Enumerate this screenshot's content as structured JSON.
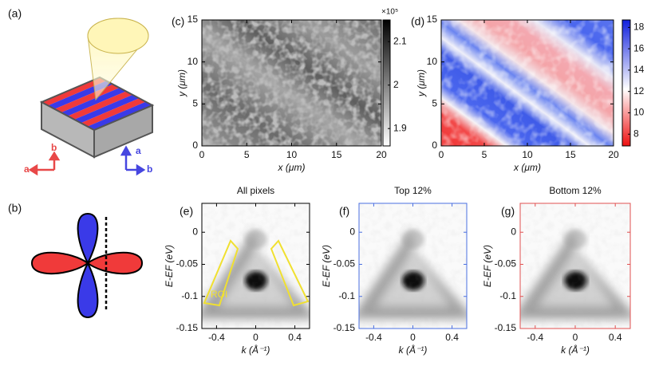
{
  "figure": {
    "panel_a": {
      "label": "(a)",
      "arrows": [
        "a",
        "b",
        "a",
        "b"
      ]
    },
    "panel_b": {
      "label": "(b)"
    },
    "maps": [
      {
        "label": "(c)",
        "xlabel": "x (μm)",
        "ylabel": "y (μm)",
        "xlim": [
          0,
          20
        ],
        "xticks": [
          0,
          5,
          10,
          15,
          20
        ],
        "ylim": [
          0,
          15
        ],
        "yticks": [
          0,
          5,
          10,
          15
        ],
        "colorbar": {
          "exponent": "×10⁵",
          "lim": [
            1.86,
            2.15
          ],
          "ticks": [
            1.9,
            2,
            2.1
          ]
        }
      },
      {
        "label": "(d)",
        "xlabel": "x (μm)",
        "ylabel": "y (μm)",
        "xlim": [
          0,
          20
        ],
        "xticks": [
          0,
          5,
          10,
          15,
          20
        ],
        "ylim": [
          0,
          15
        ],
        "yticks": [
          0,
          5,
          10,
          15
        ],
        "colorbar": {
          "lim": [
            6.9,
            18.7
          ],
          "ticks": [
            8,
            10,
            12,
            14,
            16,
            18
          ]
        }
      }
    ],
    "spectra": [
      {
        "label": "(e)",
        "title": "All pixels",
        "xlabel": "k (Å⁻¹)",
        "ylabel": "E-EF (eV)",
        "xlim": [
          -0.55,
          0.55
        ],
        "xticks": [
          -0.4,
          0,
          0.4
        ],
        "ylim": [
          -0.15,
          0.045
        ],
        "yticks": [
          -0.15,
          -0.1,
          -0.05,
          0
        ],
        "frame_color": "#000000",
        "annotation": "ROI"
      },
      {
        "label": "(f)",
        "title": "Top 12%",
        "xlabel": "k (Å⁻¹)",
        "ylabel": "E-EF (eV)",
        "xlim": [
          -0.55,
          0.55
        ],
        "xticks": [
          -0.4,
          0,
          0.4
        ],
        "ylim": [
          -0.15,
          0.045
        ],
        "yticks": [
          -0.15,
          -0.1,
          -0.05,
          0
        ],
        "frame_color": "#4a6fe0"
      },
      {
        "label": "(g)",
        "title": "Bottom 12%",
        "xlabel": "k (Å⁻¹)",
        "ylabel": "E-EF (eV)",
        "xlim": [
          -0.55,
          0.55
        ],
        "xticks": [
          -0.4,
          0,
          0.4
        ],
        "ylim": [
          -0.15,
          0.045
        ],
        "yticks": [
          -0.15,
          -0.1,
          -0.05,
          0
        ],
        "frame_color": "#e05050"
      }
    ]
  }
}
